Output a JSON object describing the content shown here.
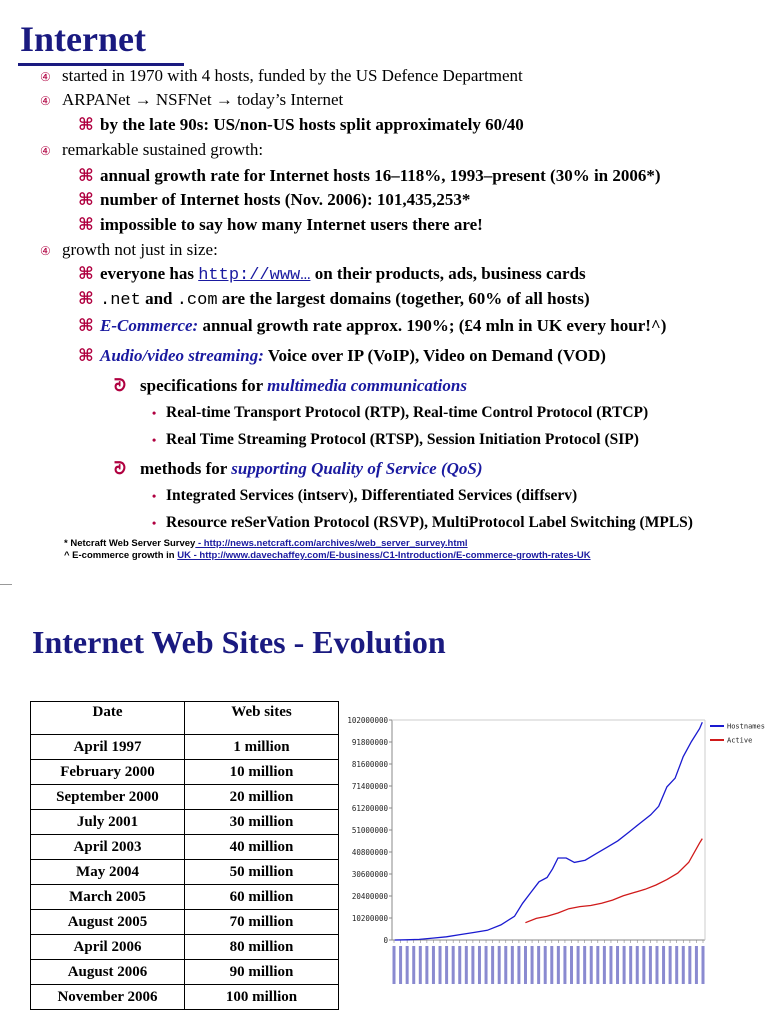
{
  "slide1": {
    "title": "Internet",
    "bullets": {
      "b1": "started in 1970 with 4 hosts, funded by the US Defence Department",
      "b2": "ARPANet → NSFNet → today’s Internet",
      "b2_1": "by the late 90s: US/non-US hosts split approximately 60/40",
      "b3": "remarkable sustained growth:",
      "b3_1": "annual growth rate for Internet hosts 16–118%, 1993–present (30% in 2006*)",
      "b3_2": "number of Internet hosts (Nov. 2006): 101,435,253*",
      "b3_3": "impossible to say how many Internet users there are!",
      "b4": "growth not just in size:",
      "b4_1_pre": "everyone has",
      "b4_1_code": "http://www…",
      "b4_1_post": "on their products, ads, business cards",
      "b4_2_code1": ".net",
      "b4_2_mid": "and",
      "b4_2_code2": ".com",
      "b4_2_post": "are the largest domains (together, 60% of all hosts)",
      "b4_3_em": "E-Commerce:",
      "b4_3_rest": "annual growth rate approx. 190%; (£4 mln in UK every hour!^)",
      "b4_4_em": "Audio/video streaming:",
      "b4_4_rest": "Voice over IP (VoIP), Video on Demand (VOD)",
      "s1_pre": "specifications for",
      "s1_em": "multimedia communications",
      "s1_a": "Real-time Transport Protocol (RTP), Real-time Control Protocol (RTCP)",
      "s1_b": "Real Time Streaming Protocol (RTSP), Session Initiation Protocol (SIP)",
      "s2_pre": "methods for",
      "s2_em": "supporting Quality of Service (QoS)",
      "s2_a": "Integrated Services (intserv), Differentiated Services (diffserv)",
      "s2_b": "Resource reSerVation Protocol (RSVP), MultiProtocol Label Switching (MPLS)"
    },
    "footnotes": {
      "f1_label": "* Netcraft Web Server Survey",
      "f1_link": " - http://news.netcraft.com/archives/web_server_survey.html",
      "f2_label": "^ E-commerce growth in",
      "f2_link": "UK - http://www.davechaffey.com/E-business/C1-Introduction/E-commerce-growth-rates-UK"
    }
  },
  "slide2": {
    "title": "Internet Web Sites - Evolution",
    "table": {
      "headers": [
        "Date",
        "Web sites"
      ],
      "rows": [
        [
          "April 1997",
          "1 million"
        ],
        [
          "February 2000",
          "10 million"
        ],
        [
          "September 2000",
          "20 million"
        ],
        [
          "July 2001",
          "30 million"
        ],
        [
          "April 2003",
          "40 million"
        ],
        [
          "May 2004",
          "50 million"
        ],
        [
          "March 2005",
          "60 million"
        ],
        [
          "August 2005",
          "70 million"
        ],
        [
          "April 2006",
          "80 million"
        ],
        [
          "August 2006",
          "90 million"
        ],
        [
          "November 2006",
          "100 million"
        ]
      ]
    }
  },
  "chart_data": {
    "type": "line",
    "title": "",
    "xlabel": "",
    "ylabel": "",
    "y_tick_labels": [
      "0",
      "10200000",
      "20400000",
      "30600000",
      "40800000",
      "51000000",
      "61200000",
      "71400000",
      "81600000",
      "91800000",
      "102000000"
    ],
    "ylim": [
      0,
      102000000
    ],
    "x_tick_note": "monthly date labels (1995–2006), rotated, illegible",
    "legend_position": "top-right",
    "grid": false,
    "series": [
      {
        "name": "Hostnames",
        "color": "#1a1ad0",
        "x": [
          1995.6,
          1996.0,
          1996.5,
          1997.0,
          1997.5,
          1998.0,
          1998.5,
          1999.0,
          1999.5,
          2000.0,
          2000.3,
          2000.6,
          2000.9,
          2001.2,
          2001.4,
          2001.6,
          2001.9,
          2002.2,
          2002.6,
          2003.0,
          2003.4,
          2003.8,
          2004.2,
          2004.6,
          2005.0,
          2005.3,
          2005.6,
          2005.9,
          2006.2,
          2006.5,
          2006.8,
          2006.9
        ],
        "y": [
          18000,
          100000,
          300000,
          900000,
          1500000,
          2500000,
          3500000,
          4500000,
          7000000,
          11000000,
          17000000,
          22000000,
          27000000,
          29000000,
          33000000,
          38000000,
          38000000,
          36000000,
          37000000,
          40000000,
          43000000,
          46000000,
          50000000,
          54000000,
          58000000,
          62000000,
          71000000,
          75000000,
          85000000,
          92000000,
          98000000,
          101000000
        ]
      },
      {
        "name": "Active",
        "color": "#d01a1a",
        "x": [
          2000.4,
          2000.8,
          2001.2,
          2001.6,
          2002.0,
          2002.4,
          2002.8,
          2003.2,
          2003.6,
          2004.0,
          2004.4,
          2004.8,
          2005.2,
          2005.6,
          2006.0,
          2006.4,
          2006.8,
          2006.9
        ],
        "y": [
          8000000,
          10000000,
          11000000,
          12500000,
          14500000,
          15500000,
          16000000,
          17000000,
          18500000,
          20500000,
          22000000,
          23500000,
          25500000,
          28000000,
          31000000,
          36000000,
          45000000,
          47000000
        ]
      }
    ]
  }
}
